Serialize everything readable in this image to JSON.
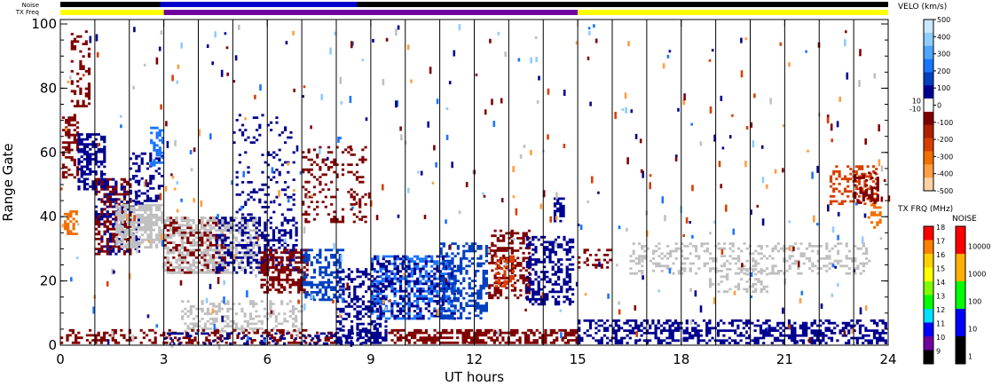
{
  "strip_labels": {
    "noise": "Noise",
    "txfreq": "TX Freq"
  },
  "chart_data": {
    "type": "heatmap",
    "xlabel": "UT hours",
    "ylabel": "Range Gate",
    "xlim": [
      0,
      24
    ],
    "ylim": [
      0,
      100
    ],
    "xticks": [
      0,
      3,
      6,
      9,
      12,
      15,
      18,
      21,
      24
    ],
    "xtick_labels": [
      "0",
      "3",
      "6",
      "9",
      "12",
      "15",
      "18",
      "21",
      "24"
    ],
    "yticks": [
      0,
      20,
      40,
      60,
      80,
      100
    ],
    "ytick_labels": [
      "0",
      "20",
      "40",
      "60",
      "80",
      "100"
    ],
    "beam_marks_hours": [
      1,
      2,
      3,
      4,
      5,
      6,
      7,
      8,
      9,
      10,
      11,
      12,
      13,
      14,
      15,
      16,
      17,
      18,
      19,
      20,
      21,
      22,
      23
    ],
    "ground_scatter_color": "#c0c0c0",
    "velocity_colorbar": {
      "title": "VELO (km/s)",
      "tick_labels": [
        "500",
        "400",
        "300",
        "200",
        "100",
        "0",
        "-100",
        "-200",
        "-300",
        "-400",
        "-500"
      ],
      "inner_labels": [
        "10",
        "-10"
      ],
      "colors": [
        "#c8e8ff",
        "#90ccff",
        "#4da6ff",
        "#1a75ff",
        "#0040c0",
        "#000090",
        "#ffffff",
        "#800000",
        "#b02000",
        "#d84000",
        "#f07000",
        "#ff9d40",
        "#ffd0a0"
      ]
    },
    "txfreq_colorbar": {
      "title": "TX FRQ (MHz)",
      "labels": [
        "18",
        "17",
        "16",
        "15",
        "14",
        "13",
        "12",
        "11",
        "10",
        "9"
      ],
      "colors": [
        "#ff0000",
        "#ff8000",
        "#ffd000",
        "#ffff00",
        "#80ff00",
        "#00ff00",
        "#00e0ff",
        "#0000ff",
        "#7000a0",
        "#000000"
      ]
    },
    "noise_colorbar": {
      "title": "NOISE",
      "labels": [
        "10000",
        "1000",
        "100",
        "10",
        "1"
      ],
      "colors": [
        "#ff0000",
        "#ffb000",
        "#00ff00",
        "#0000ff",
        "#000000"
      ]
    },
    "noise_strip": [
      {
        "start": 0,
        "end": 24,
        "color": "#000000"
      },
      {
        "start": 2.9,
        "end": 8.6,
        "color": "#0000cc"
      }
    ],
    "txfreq_strip": [
      {
        "start": 0,
        "end": 3,
        "color": "#ffff00"
      },
      {
        "start": 3,
        "end": 15,
        "color": "#7000a0"
      },
      {
        "start": 15,
        "end": 24,
        "color": "#ffff00"
      }
    ],
    "scatter_regions": [
      {
        "t0": 0.05,
        "t1": 0.55,
        "g0": 52,
        "g1": 72,
        "color": "#800000",
        "density": 0.5
      },
      {
        "t0": 0.3,
        "t1": 0.9,
        "g0": 74,
        "g1": 98,
        "color": "#800000",
        "density": 0.3
      },
      {
        "t0": 0.1,
        "t1": 0.5,
        "g0": 34,
        "g1": 42,
        "color": "#f07000",
        "density": 0.5
      },
      {
        "t0": 0.5,
        "t1": 1.3,
        "g0": 48,
        "g1": 66,
        "color": "#000090",
        "density": 0.6
      },
      {
        "t0": 1.0,
        "t1": 2.1,
        "g0": 28,
        "g1": 52,
        "color": "#800000",
        "density": 0.5
      },
      {
        "t0": 1.0,
        "t1": 2.3,
        "g0": 28,
        "g1": 52,
        "color": "#000090",
        "density": 0.25
      },
      {
        "t0": 1.6,
        "t1": 3.0,
        "g0": 30,
        "g1": 44,
        "color": "#c0c0c0",
        "density": 0.7
      },
      {
        "t0": 2.0,
        "t1": 3.0,
        "g0": 44,
        "g1": 60,
        "color": "#000090",
        "density": 0.3
      },
      {
        "t0": 2.6,
        "t1": 3.0,
        "g0": 56,
        "g1": 68,
        "color": "#1a75ff",
        "density": 0.5
      },
      {
        "t0": 3.0,
        "t1": 4.8,
        "g0": 22,
        "g1": 40,
        "color": "#800000",
        "density": 0.45
      },
      {
        "t0": 3.0,
        "t1": 5.8,
        "g0": 22,
        "g1": 40,
        "color": "#c0c0c0",
        "density": 0.45
      },
      {
        "t0": 4.5,
        "t1": 6.9,
        "g0": 22,
        "g1": 40,
        "color": "#000090",
        "density": 0.35
      },
      {
        "t0": 5.0,
        "t1": 6.8,
        "g0": 40,
        "g1": 72,
        "color": "#000090",
        "density": 0.12
      },
      {
        "t0": 5.8,
        "t1": 7.2,
        "g0": 16,
        "g1": 30,
        "color": "#800000",
        "density": 0.6
      },
      {
        "t0": 3.5,
        "t1": 7.0,
        "g0": 4,
        "g1": 14,
        "color": "#c0c0c0",
        "density": 0.35
      },
      {
        "t0": 7.0,
        "t1": 8.9,
        "g0": 38,
        "g1": 62,
        "color": "#800000",
        "density": 0.2
      },
      {
        "t0": 7.0,
        "t1": 8.2,
        "g0": 14,
        "g1": 30,
        "color": "#0040c0",
        "density": 0.4
      },
      {
        "t0": 8.0,
        "t1": 9.5,
        "g0": 4,
        "g1": 24,
        "color": "#000090",
        "density": 0.4
      },
      {
        "t0": 9.0,
        "t1": 11.5,
        "g0": 8,
        "g1": 28,
        "color": "#1a75ff",
        "density": 0.45
      },
      {
        "t0": 9.0,
        "t1": 11.5,
        "g0": 8,
        "g1": 28,
        "color": "#000090",
        "density": 0.3
      },
      {
        "t0": 11.0,
        "t1": 12.4,
        "g0": 8,
        "g1": 32,
        "color": "#0040c0",
        "density": 0.45
      },
      {
        "t0": 12.4,
        "t1": 13.6,
        "g0": 14,
        "g1": 36,
        "color": "#800000",
        "density": 0.45
      },
      {
        "t0": 12.6,
        "t1": 13.2,
        "g0": 18,
        "g1": 28,
        "color": "#d84000",
        "density": 0.4
      },
      {
        "t0": 13.5,
        "t1": 14.9,
        "g0": 12,
        "g1": 34,
        "color": "#000090",
        "density": 0.45
      },
      {
        "t0": 14.3,
        "t1": 14.6,
        "g0": 38,
        "g1": 46,
        "color": "#000090",
        "density": 0.6
      },
      {
        "t0": 15.0,
        "t1": 16.0,
        "g0": 24,
        "g1": 30,
        "color": "#800000",
        "density": 0.25
      },
      {
        "t0": 16.5,
        "t1": 23.5,
        "g0": 22,
        "g1": 32,
        "color": "#c0c0c0",
        "density": 0.28
      },
      {
        "t0": 18.8,
        "t1": 20.5,
        "g0": 16,
        "g1": 24,
        "color": "#c0c0c0",
        "density": 0.3
      },
      {
        "t0": 22.3,
        "t1": 23.7,
        "g0": 44,
        "g1": 56,
        "color": "#d84000",
        "density": 0.4
      },
      {
        "t0": 23.0,
        "t1": 23.7,
        "g0": 44,
        "g1": 54,
        "color": "#800000",
        "density": 0.4
      },
      {
        "t0": 23.4,
        "t1": 23.8,
        "g0": 36,
        "g1": 44,
        "color": "#f07000",
        "density": 0.5
      },
      {
        "t0": 0.0,
        "t1": 8.0,
        "g0": 0,
        "g1": 5,
        "color": "#800000",
        "density": 0.35
      },
      {
        "t0": 8.0,
        "t1": 9.5,
        "g0": 0,
        "g1": 5,
        "color": "#000090",
        "density": 0.6
      },
      {
        "t0": 9.5,
        "t1": 15.0,
        "g0": 0,
        "g1": 5,
        "color": "#800000",
        "density": 0.6
      },
      {
        "t0": 15.0,
        "t1": 24.0,
        "g0": 0,
        "g1": 8,
        "color": "#000090",
        "density": 0.45
      },
      {
        "t0": 3.0,
        "t1": 9.0,
        "g0": 0,
        "g1": 4,
        "color": "#000090",
        "density": 0.25
      }
    ]
  }
}
